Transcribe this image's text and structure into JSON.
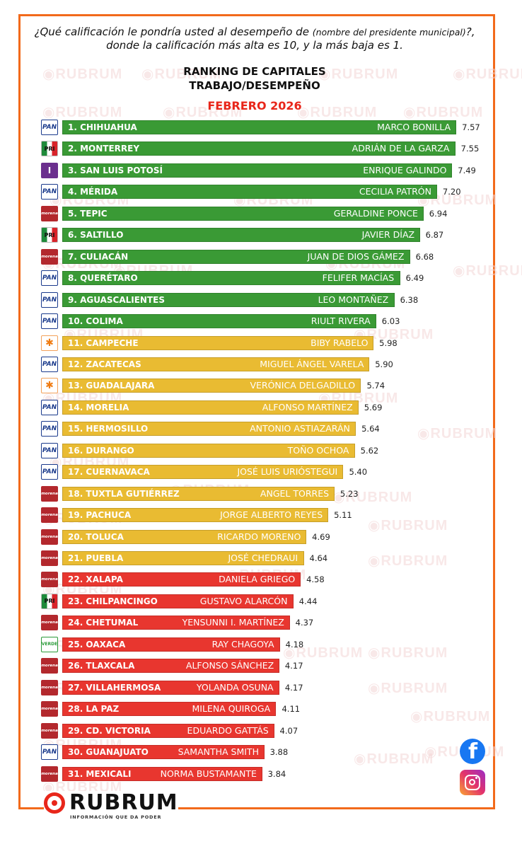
{
  "header": {
    "question_part1": "¿Qué calificación le pondría usted al desempeño de",
    "question_small": "(nombre del presidente municipal)",
    "question_part2": "?, donde la calificación más alta es 10, y la más baja es 1.",
    "title_line1": "RANKING DE CAPITALES",
    "title_line2": "TRABAJO/DESEMPEÑO",
    "title_line3": "FEBRERO 2026"
  },
  "watermark_text": "RUBRUM",
  "brand": {
    "name": "RUBRUM",
    "tagline": "INFORMACIÓN QUE DA PODER"
  },
  "social": {
    "facebook_glyph": "f",
    "facebook_icon": "facebook-icon",
    "instagram_icon": "instagram-icon"
  },
  "colors": {
    "green": "#3a9a35",
    "yellow": "#e9bb32",
    "red": "#e8362f",
    "accent_orange": "#f26a1b",
    "title_red": "#e8261a"
  },
  "party_labels": {
    "pan": "PAN",
    "pri": "PRI",
    "ind": "I",
    "morena": "morena",
    "mc": "✱",
    "verde": "VERDE"
  },
  "chart_data": {
    "type": "bar",
    "orientation": "horizontal",
    "value_range": [
      0,
      10
    ],
    "items": [
      {
        "rank_label": "1. CHIHUAHUA",
        "mayor": "MARCO BONILLA",
        "value": 7.57,
        "value_label": "7.57",
        "party": "pan",
        "band": "green"
      },
      {
        "rank_label": "2. MONTERREY",
        "mayor": "ADRIÁN DE LA GARZA",
        "value": 7.55,
        "value_label": "7.55",
        "party": "pri",
        "band": "green"
      },
      {
        "rank_label": "3. SAN LUIS POTOSÍ",
        "mayor": "ENRIQUE GALINDO",
        "value": 7.49,
        "value_label": "7.49",
        "party": "ind",
        "band": "green"
      },
      {
        "rank_label": "4. MÉRIDA",
        "mayor": "CECILIA PATRÓN",
        "value": 7.2,
        "value_label": "7.20",
        "party": "pan",
        "band": "green"
      },
      {
        "rank_label": "5. TEPIC",
        "mayor": "GERALDINE PONCE",
        "value": 6.94,
        "value_label": "6.94",
        "party": "morena",
        "band": "green"
      },
      {
        "rank_label": "6. SALTILLO",
        "mayor": "JAVIER DÍAZ",
        "value": 6.87,
        "value_label": "6.87",
        "party": "pri",
        "band": "green"
      },
      {
        "rank_label": "7. CULIACÁN",
        "mayor": "JUAN DE DIOS GÁMEZ",
        "value": 6.68,
        "value_label": "6.68",
        "party": "morena",
        "band": "green"
      },
      {
        "rank_label": "8. QUERÉTARO",
        "mayor": "FELIFER MACÍAS",
        "value": 6.49,
        "value_label": "6.49",
        "party": "pan",
        "band": "green"
      },
      {
        "rank_label": "9. AGUASCALIENTES",
        "mayor": "LEO MONTAÑEZ",
        "value": 6.38,
        "value_label": "6.38",
        "party": "pan",
        "band": "green"
      },
      {
        "rank_label": "10. COLIMA",
        "mayor": "RIULT RIVERA",
        "value": 6.03,
        "value_label": "6.03",
        "party": "pan",
        "band": "green"
      },
      {
        "rank_label": "11. CAMPECHE",
        "mayor": "BIBY RABELO",
        "value": 5.98,
        "value_label": "5.98",
        "party": "mc",
        "band": "yellow"
      },
      {
        "rank_label": "12. ZACATECAS",
        "mayor": "MIGUEL ÁNGEL VARELA",
        "value": 5.9,
        "value_label": "5.90",
        "party": "pan",
        "band": "yellow"
      },
      {
        "rank_label": "13. GUADALAJARA",
        "mayor": "VERÓNICA DELGADILLO",
        "value": 5.74,
        "value_label": "5.74",
        "party": "mc",
        "band": "yellow"
      },
      {
        "rank_label": "14. MORELIA",
        "mayor": "ALFONSO MARTÍNEZ",
        "value": 5.69,
        "value_label": "5.69",
        "party": "pan",
        "band": "yellow"
      },
      {
        "rank_label": "15. HERMOSILLO",
        "mayor": "ANTONIO ASTIAZARÁN",
        "value": 5.64,
        "value_label": "5.64",
        "party": "pan",
        "band": "yellow"
      },
      {
        "rank_label": "16. DURANGO",
        "mayor": "TOÑO OCHOA",
        "value": 5.62,
        "value_label": "5.62",
        "party": "pan",
        "band": "yellow"
      },
      {
        "rank_label": "17. CUERNAVACA",
        "mayor": "JOSÉ LUIS URIÓSTEGUI",
        "value": 5.4,
        "value_label": "5.40",
        "party": "pan",
        "band": "yellow"
      },
      {
        "rank_label": "18. TUXTLA GUTIÉRREZ",
        "mayor": "ANGEL TORRES",
        "value": 5.23,
        "value_label": "5.23",
        "party": "morena",
        "band": "yellow"
      },
      {
        "rank_label": "19. PACHUCA",
        "mayor": "JORGE ALBERTO REYES",
        "value": 5.11,
        "value_label": "5.11",
        "party": "morena",
        "band": "yellow"
      },
      {
        "rank_label": "20. TOLUCA",
        "mayor": "RICARDO MORENO",
        "value": 4.69,
        "value_label": "4.69",
        "party": "morena",
        "band": "yellow"
      },
      {
        "rank_label": "21. PUEBLA",
        "mayor": "JOSÉ CHEDRAUI",
        "value": 4.64,
        "value_label": "4.64",
        "party": "morena",
        "band": "yellow"
      },
      {
        "rank_label": "22. XALAPA",
        "mayor": "DANIELA GRIEGO",
        "value": 4.58,
        "value_label": "4.58",
        "party": "morena",
        "band": "red"
      },
      {
        "rank_label": "23. CHILPANCINGO",
        "mayor": "GUSTAVO ALARCÓN",
        "value": 4.44,
        "value_label": "4.44",
        "party": "pri",
        "band": "red"
      },
      {
        "rank_label": "24. CHETUMAL",
        "mayor": "YENSUNNI I. MARTÍNEZ",
        "value": 4.37,
        "value_label": "4.37",
        "party": "morena",
        "band": "red"
      },
      {
        "rank_label": "25. OAXACA",
        "mayor": "RAY CHAGOYA",
        "value": 4.18,
        "value_label": "4.18",
        "party": "verde",
        "band": "red"
      },
      {
        "rank_label": "26. TLAXCALA",
        "mayor": "ALFONSO SÁNCHEZ",
        "value": 4.17,
        "value_label": "4.17",
        "party": "morena",
        "band": "red"
      },
      {
        "rank_label": "27. VILLAHERMOSA",
        "mayor": "YOLANDA OSUNA",
        "value": 4.17,
        "value_label": "4.17",
        "party": "morena",
        "band": "red"
      },
      {
        "rank_label": "28. LA PAZ",
        "mayor": "MILENA QUIROGA",
        "value": 4.11,
        "value_label": "4.11",
        "party": "morena",
        "band": "red"
      },
      {
        "rank_label": "29. CD. VICTORIA",
        "mayor": "EDUARDO GATTÁS",
        "value": 4.07,
        "value_label": "4.07",
        "party": "morena",
        "band": "red"
      },
      {
        "rank_label": "30. GUANAJUATO",
        "mayor": "SAMANTHA SMITH",
        "value": 3.88,
        "value_label": "3.88",
        "party": "pan",
        "band": "red"
      },
      {
        "rank_label": "31. MEXICALI",
        "mayor": "NORMA BUSTAMANTE",
        "value": 3.84,
        "value_label": "3.84",
        "party": "morena",
        "band": "red"
      }
    ]
  }
}
